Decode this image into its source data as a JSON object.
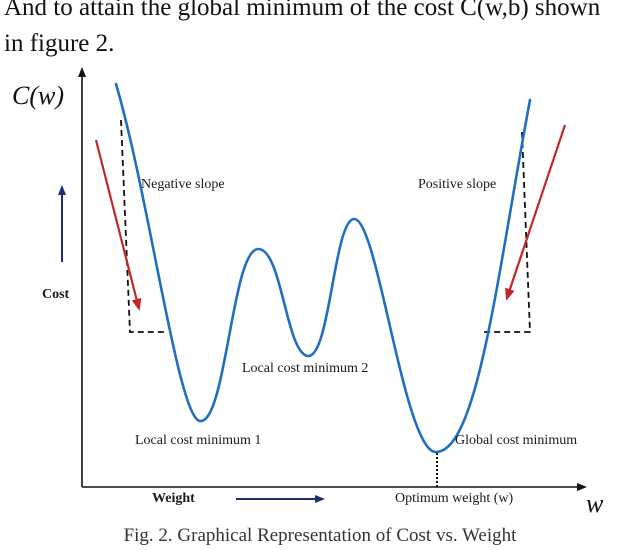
{
  "body_text": {
    "line1": "And to attain the global minimum of the cost C(w,b) shown",
    "line2": "in figure 2."
  },
  "figure": {
    "y_axis_symbol": "C(w)",
    "x_axis_symbol": "w",
    "y_axis_label": "Cost",
    "x_axis_label": "Weight",
    "labels": {
      "negative_slope": "Negative slope",
      "positive_slope": "Positive slope",
      "local_min_1": "Local cost minimum 1",
      "local_min_2": "Local cost minimum 2",
      "global_min": "Global cost minimum",
      "optimum_weight": "Optimum weight (w)"
    },
    "colors": {
      "curve": "#1f6fc0",
      "arrows": "#c0282a",
      "axis_arrows": "#1b2f6e",
      "axes": "#111111"
    }
  },
  "caption": "Fig. 2. Graphical Representation of Cost vs. Weight"
}
